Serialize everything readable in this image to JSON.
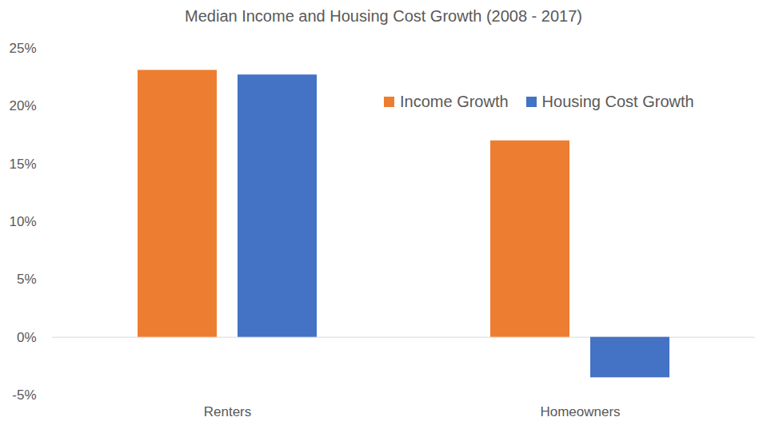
{
  "chart_data": {
    "type": "bar",
    "title": "Median Income and Housing Cost Growth (2008 - 2017)",
    "categories": [
      "Renters",
      "Homeowners"
    ],
    "series": [
      {
        "name": "Income Growth",
        "color": "#ed7d31",
        "values": [
          23.1,
          17.0
        ]
      },
      {
        "name": "Housing Cost Growth",
        "color": "#4472c4",
        "values": [
          22.7,
          -3.5
        ]
      }
    ],
    "ylim": [
      -5,
      25
    ],
    "yticks": [
      {
        "value": -5,
        "label": "-5%"
      },
      {
        "value": 0,
        "label": "0%"
      },
      {
        "value": 5,
        "label": "5%"
      },
      {
        "value": 10,
        "label": "10%"
      },
      {
        "value": 15,
        "label": "15%"
      },
      {
        "value": 20,
        "label": "20%"
      },
      {
        "value": 25,
        "label": "25%"
      }
    ],
    "grid": false,
    "legend": "top-right"
  }
}
